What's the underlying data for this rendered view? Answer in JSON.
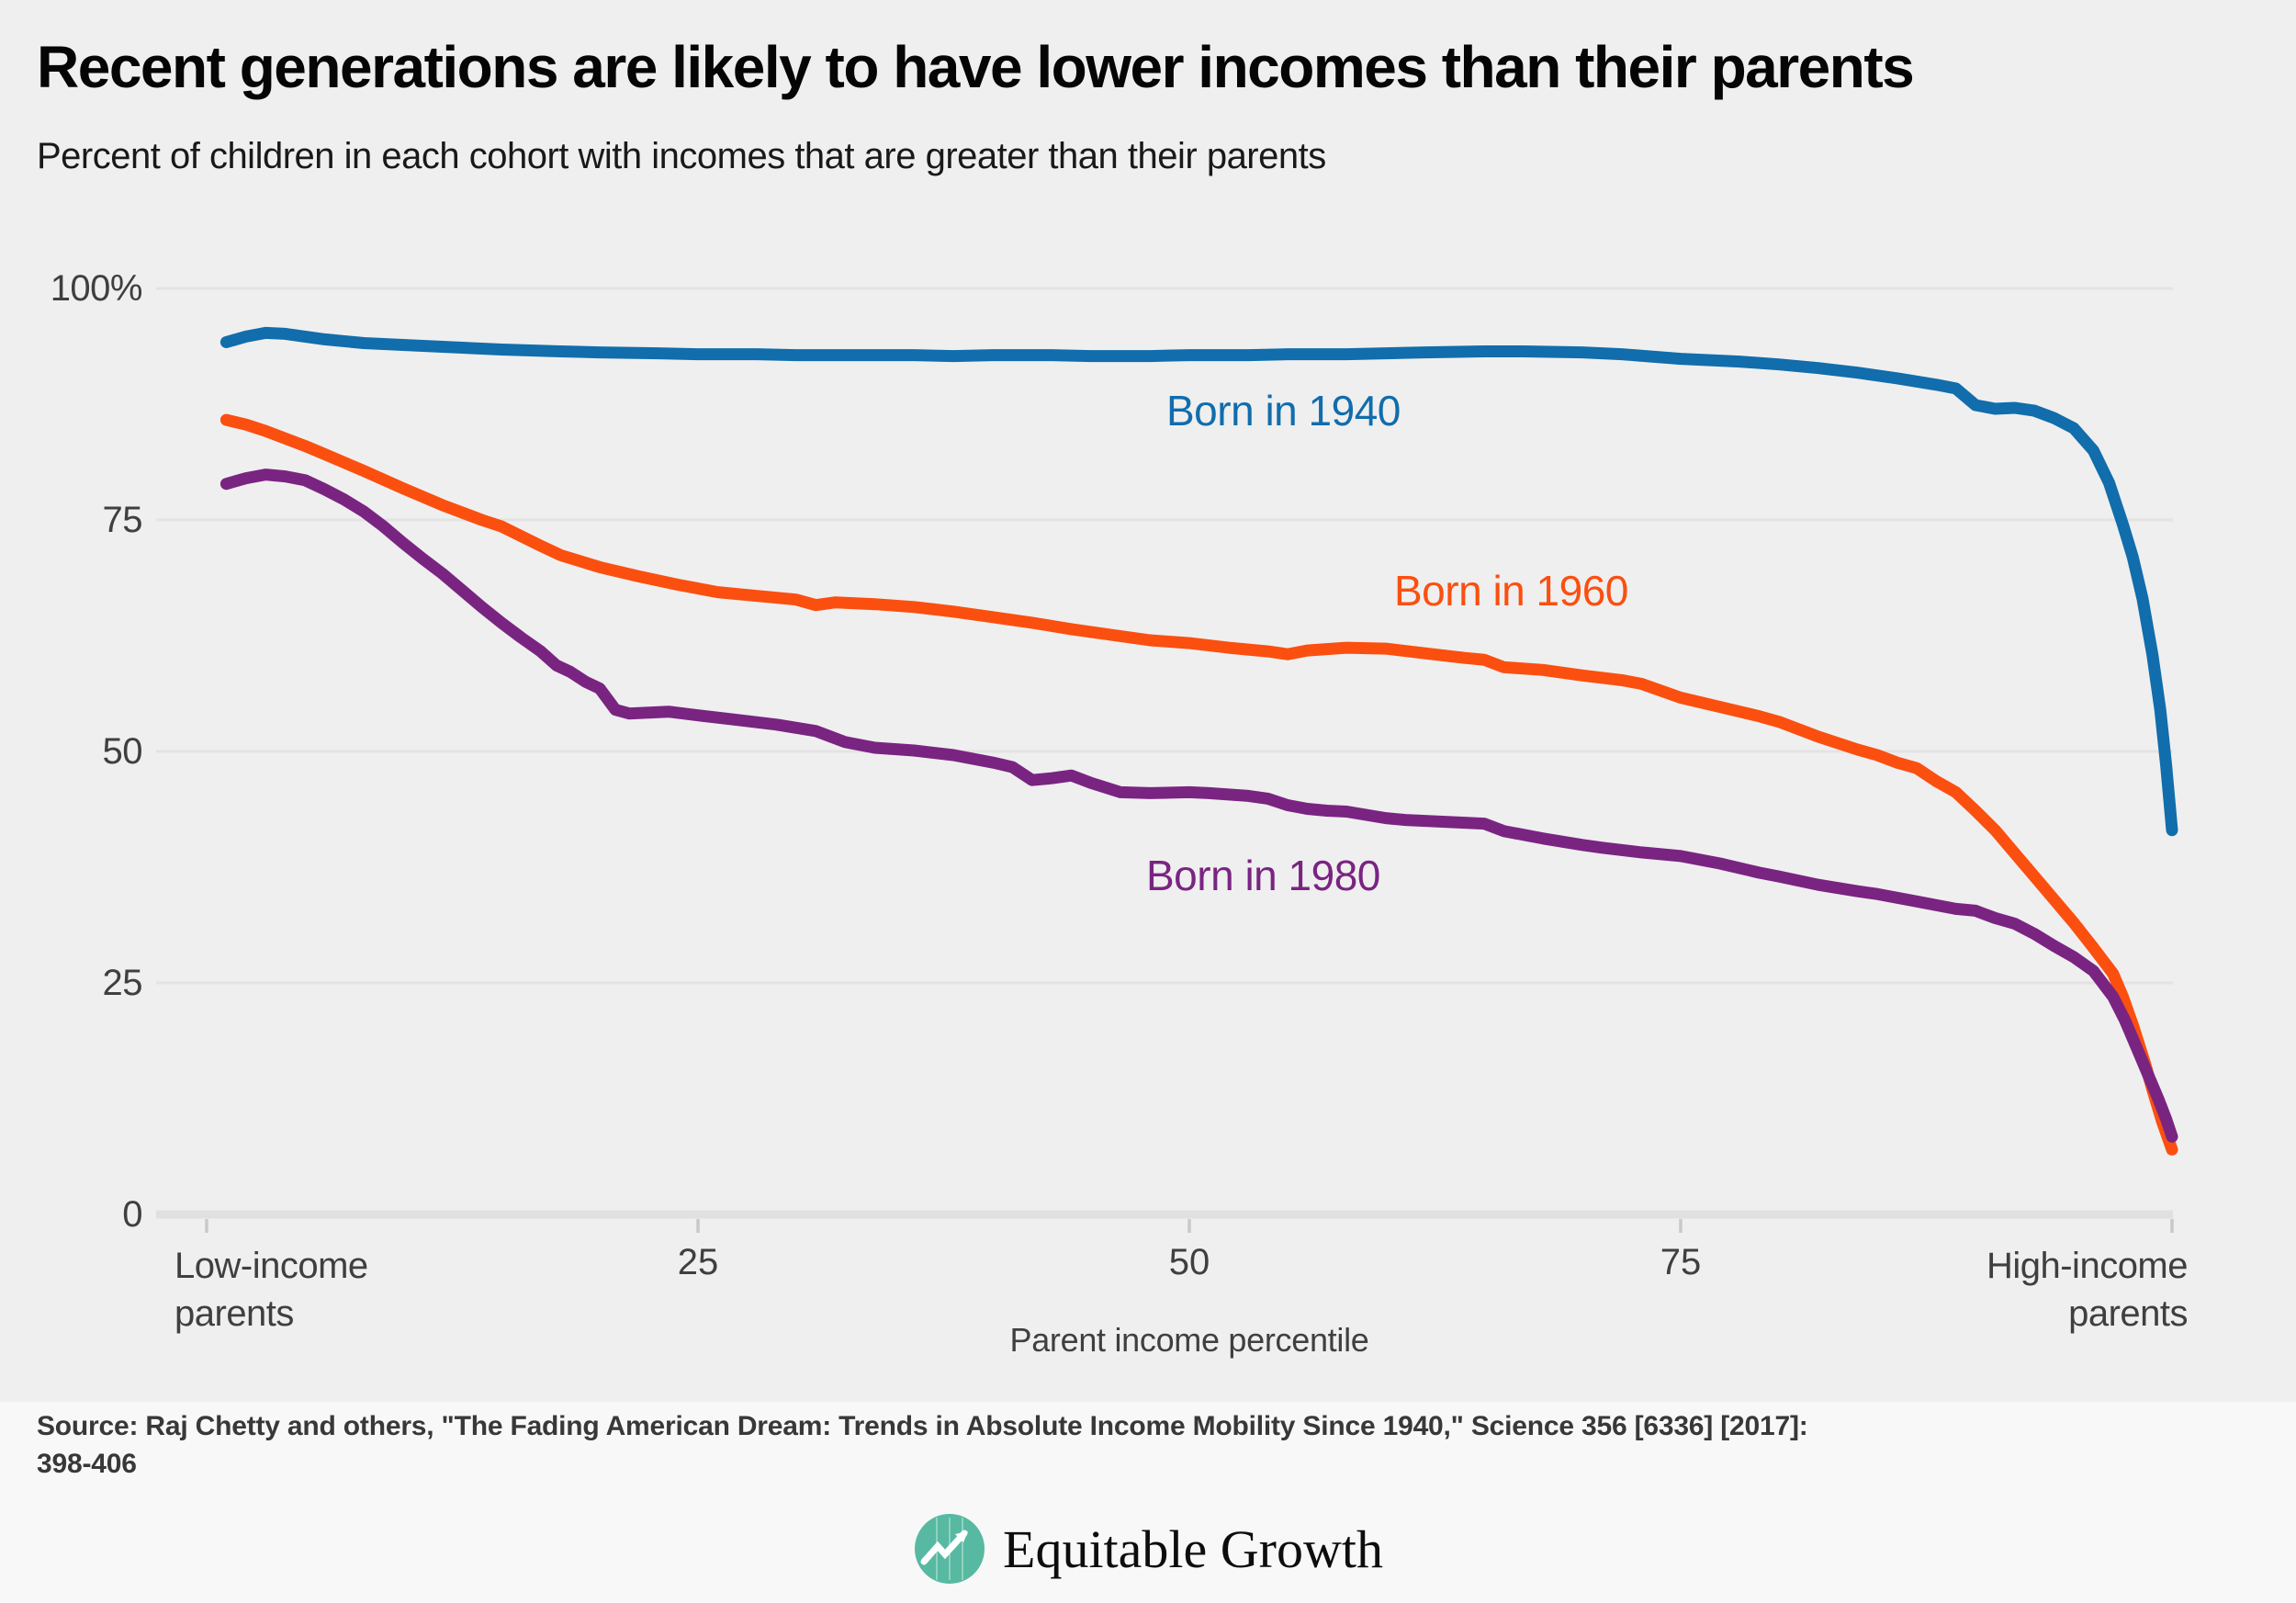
{
  "header": {
    "title": "Recent generations are likely to have lower incomes than their parents",
    "subtitle": "Percent of children in each cohort with incomes that are greater than their parents"
  },
  "chart_data": {
    "type": "line",
    "title": "Recent generations are likely to have lower incomes than their parents",
    "subtitle": "Percent of children in each cohort with incomes that are greater than their parents",
    "xlabel": "Parent income percentile",
    "ylabel": "",
    "grid": true,
    "x_axis": {
      "min": 0,
      "max": 100,
      "tick_values": [
        0,
        25,
        50,
        75,
        100
      ],
      "tick_labels": [
        "25",
        "50",
        "75"
      ],
      "left_label": "Low-income parents",
      "right_label": "High-income parents"
    },
    "y_axis": {
      "min": 0,
      "max": 100,
      "tick_values": [
        0,
        25,
        50,
        75,
        100
      ],
      "tick_labels": [
        "0",
        "25",
        "50",
        "75",
        "100%"
      ]
    },
    "series": [
      {
        "name": "Born in 1940",
        "color": "#116DAC",
        "points": [
          [
            1,
            94.2
          ],
          [
            2,
            94.8
          ],
          [
            3,
            95.2
          ],
          [
            4,
            95.1
          ],
          [
            5,
            94.8
          ],
          [
            6,
            94.5
          ],
          [
            8,
            94.1
          ],
          [
            10,
            93.9
          ],
          [
            12,
            93.7
          ],
          [
            15,
            93.4
          ],
          [
            18,
            93.2
          ],
          [
            20,
            93.1
          ],
          [
            23,
            93.0
          ],
          [
            25,
            92.9
          ],
          [
            28,
            92.9
          ],
          [
            30,
            92.8
          ],
          [
            33,
            92.8
          ],
          [
            36,
            92.8
          ],
          [
            38,
            92.7
          ],
          [
            40,
            92.8
          ],
          [
            43,
            92.8
          ],
          [
            45,
            92.7
          ],
          [
            48,
            92.7
          ],
          [
            50,
            92.8
          ],
          [
            53,
            92.8
          ],
          [
            55,
            92.9
          ],
          [
            58,
            92.9
          ],
          [
            60,
            93.0
          ],
          [
            62,
            93.1
          ],
          [
            65,
            93.2
          ],
          [
            67,
            93.2
          ],
          [
            70,
            93.1
          ],
          [
            72,
            92.9
          ],
          [
            75,
            92.4
          ],
          [
            78,
            92.1
          ],
          [
            80,
            91.8
          ],
          [
            82,
            91.4
          ],
          [
            84,
            90.9
          ],
          [
            86,
            90.3
          ],
          [
            88,
            89.6
          ],
          [
            89,
            89.2
          ],
          [
            90,
            87.4
          ],
          [
            91,
            87.0
          ],
          [
            92,
            87.1
          ],
          [
            93,
            86.8
          ],
          [
            94,
            86.0
          ],
          [
            95,
            84.9
          ],
          [
            96,
            82.5
          ],
          [
            96.8,
            79.0
          ],
          [
            97.5,
            74.5
          ],
          [
            98,
            71.0
          ],
          [
            98.5,
            66.5
          ],
          [
            99,
            60.5
          ],
          [
            99.4,
            54.5
          ],
          [
            99.7,
            48.5
          ],
          [
            100,
            41.5
          ]
        ]
      },
      {
        "name": "Born in 1960",
        "color": "#FB4F10",
        "points": [
          [
            1,
            85.8
          ],
          [
            2,
            85.3
          ],
          [
            3,
            84.6
          ],
          [
            4,
            83.8
          ],
          [
            5,
            83.0
          ],
          [
            6,
            82.1
          ],
          [
            8,
            80.3
          ],
          [
            10,
            78.4
          ],
          [
            12,
            76.6
          ],
          [
            14,
            75.0
          ],
          [
            15,
            74.3
          ],
          [
            17,
            72.2
          ],
          [
            18,
            71.2
          ],
          [
            20,
            69.9
          ],
          [
            22,
            68.9
          ],
          [
            24,
            68.0
          ],
          [
            26,
            67.2
          ],
          [
            28,
            66.8
          ],
          [
            30,
            66.4
          ],
          [
            31,
            65.8
          ],
          [
            32,
            66.1
          ],
          [
            34,
            65.9
          ],
          [
            36,
            65.6
          ],
          [
            38,
            65.1
          ],
          [
            40,
            64.5
          ],
          [
            42,
            63.9
          ],
          [
            44,
            63.2
          ],
          [
            46,
            62.6
          ],
          [
            48,
            62.0
          ],
          [
            50,
            61.7
          ],
          [
            52,
            61.2
          ],
          [
            54,
            60.8
          ],
          [
            55,
            60.5
          ],
          [
            56,
            60.9
          ],
          [
            58,
            61.2
          ],
          [
            60,
            61.1
          ],
          [
            62,
            60.6
          ],
          [
            64,
            60.1
          ],
          [
            65,
            59.9
          ],
          [
            66,
            59.1
          ],
          [
            68,
            58.8
          ],
          [
            70,
            58.2
          ],
          [
            72,
            57.7
          ],
          [
            73,
            57.3
          ],
          [
            75,
            55.8
          ],
          [
            77,
            54.8
          ],
          [
            79,
            53.8
          ],
          [
            80,
            53.2
          ],
          [
            82,
            51.6
          ],
          [
            84,
            50.2
          ],
          [
            85,
            49.6
          ],
          [
            86,
            48.8
          ],
          [
            87,
            48.2
          ],
          [
            88,
            46.8
          ],
          [
            89,
            45.6
          ],
          [
            90,
            43.6
          ],
          [
            91,
            41.5
          ],
          [
            92,
            39.0
          ],
          [
            93,
            36.5
          ],
          [
            94,
            34.0
          ],
          [
            95,
            31.5
          ],
          [
            96,
            28.8
          ],
          [
            97,
            26.0
          ],
          [
            97.5,
            23.5
          ],
          [
            98,
            20.5
          ],
          [
            98.6,
            16.5
          ],
          [
            99,
            13.5
          ],
          [
            99.5,
            10.0
          ],
          [
            100,
            7.0
          ]
        ]
      },
      {
        "name": "Born in 1980",
        "color": "#7A2482",
        "points": [
          [
            1,
            78.9
          ],
          [
            2,
            79.5
          ],
          [
            3,
            79.9
          ],
          [
            4,
            79.7
          ],
          [
            5,
            79.3
          ],
          [
            6,
            78.3
          ],
          [
            7,
            77.2
          ],
          [
            8,
            75.9
          ],
          [
            9,
            74.3
          ],
          [
            10,
            72.5
          ],
          [
            11,
            70.8
          ],
          [
            12,
            69.2
          ],
          [
            13,
            67.4
          ],
          [
            14,
            65.6
          ],
          [
            15,
            63.9
          ],
          [
            16,
            62.3
          ],
          [
            17,
            60.8
          ],
          [
            17.8,
            59.3
          ],
          [
            18.5,
            58.6
          ],
          [
            19.3,
            57.5
          ],
          [
            20,
            56.8
          ],
          [
            20.8,
            54.5
          ],
          [
            21.5,
            54.1
          ],
          [
            22.5,
            54.2
          ],
          [
            23.5,
            54.3
          ],
          [
            25,
            53.9
          ],
          [
            27,
            53.4
          ],
          [
            29,
            52.9
          ],
          [
            31,
            52.2
          ],
          [
            32.5,
            51.0
          ],
          [
            34,
            50.4
          ],
          [
            36,
            50.1
          ],
          [
            38,
            49.6
          ],
          [
            40,
            48.8
          ],
          [
            41,
            48.3
          ],
          [
            42,
            46.9
          ],
          [
            43,
            47.1
          ],
          [
            44,
            47.4
          ],
          [
            45,
            46.6
          ],
          [
            46.5,
            45.6
          ],
          [
            48,
            45.5
          ],
          [
            50,
            45.6
          ],
          [
            51,
            45.5
          ],
          [
            53,
            45.2
          ],
          [
            54,
            44.9
          ],
          [
            55,
            44.2
          ],
          [
            56,
            43.8
          ],
          [
            57,
            43.6
          ],
          [
            58,
            43.5
          ],
          [
            60,
            42.8
          ],
          [
            61,
            42.6
          ],
          [
            63,
            42.4
          ],
          [
            65,
            42.2
          ],
          [
            66,
            41.4
          ],
          [
            68,
            40.6
          ],
          [
            70,
            39.9
          ],
          [
            71,
            39.6
          ],
          [
            73,
            39.1
          ],
          [
            75,
            38.7
          ],
          [
            77,
            37.9
          ],
          [
            79,
            36.9
          ],
          [
            80,
            36.5
          ],
          [
            82,
            35.6
          ],
          [
            84,
            34.9
          ],
          [
            85,
            34.6
          ],
          [
            87,
            33.8
          ],
          [
            89,
            33.0
          ],
          [
            90,
            32.8
          ],
          [
            91,
            32.0
          ],
          [
            92,
            31.4
          ],
          [
            93,
            30.3
          ],
          [
            94,
            29.0
          ],
          [
            95,
            27.8
          ],
          [
            96,
            26.3
          ],
          [
            97,
            23.5
          ],
          [
            97.6,
            21.0
          ],
          [
            98.2,
            18.0
          ],
          [
            98.8,
            15.0
          ],
          [
            99.3,
            12.5
          ],
          [
            99.7,
            10.3
          ],
          [
            100,
            8.4
          ]
        ]
      }
    ],
    "colors": {
      "background": "#EFEFEF",
      "footer_background": "#F8F8F8",
      "gridline": "#E3E3E3",
      "axis_baseline": "#E0E0E0",
      "tick": "#C9C9C9"
    }
  },
  "footer": {
    "source_line1": "Source: Raj Chetty and others, \"The Fading American Dream: Trends in Absolute Income Mobility Since 1940,\" Science 356 [6336] [2017]:",
    "source_line2": "398-406",
    "logo": {
      "text": "Equitable Growth",
      "icon": "line-chart-circle-icon",
      "icon_color": "#57B9A1"
    }
  }
}
